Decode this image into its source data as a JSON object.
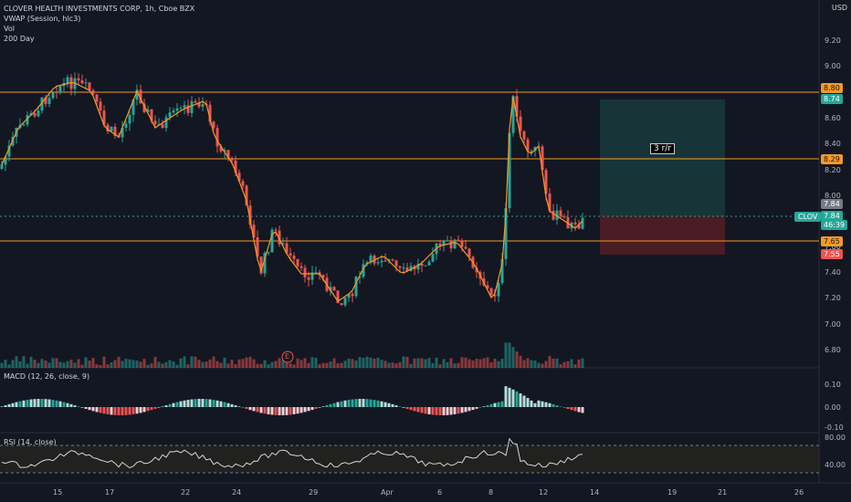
{
  "header": {
    "title": "CLOVER HEALTH INVESTMENTS CORP, 1h, Cboe BZX",
    "indicators": [
      "VWAP (Session, hlc3)",
      "Vol",
      "200 Day"
    ],
    "currency": "USD"
  },
  "price_axis": [
    "9.20",
    "9.00",
    "8.80",
    "8.60",
    "8.40",
    "8.20",
    "8.00",
    "7.80",
    "7.60",
    "7.40",
    "7.20",
    "7.00",
    "6.80"
  ],
  "price_labels": [
    {
      "text": "8.80",
      "color": "#f59a23"
    },
    {
      "text": "8.74",
      "color": "#26a69a"
    },
    {
      "text": "8.29",
      "color": "#f59a23"
    },
    {
      "text": "7.84",
      "color": "#787b86"
    },
    {
      "text": "7.84",
      "color": "#26a69a"
    },
    {
      "text": "46:39",
      "color": "#26a69a"
    },
    {
      "text": "7.65",
      "color": "#f59a23"
    },
    {
      "text": "7.55",
      "color": "#ef5350"
    }
  ],
  "ticker_tag": "CLOV",
  "rr_label": "3 r/r",
  "earnings_marker": "E",
  "macd": {
    "label": "MACD (12, 26, close, 9)",
    "axis": [
      "0.10",
      "0.00",
      "-0.10"
    ]
  },
  "rsi": {
    "label": "RSI (14, close)",
    "axis": [
      "80.00",
      "40.00"
    ]
  },
  "time_axis": [
    "15",
    "17",
    "22",
    "24",
    "29",
    "Apr",
    "6",
    "8",
    "12",
    "14",
    "19",
    "21",
    "26"
  ],
  "colors": {
    "bg": "#131722",
    "up": "#26a69a",
    "down": "#ef5350",
    "level": "#f59a23",
    "vwap": "#f59a23"
  }
}
